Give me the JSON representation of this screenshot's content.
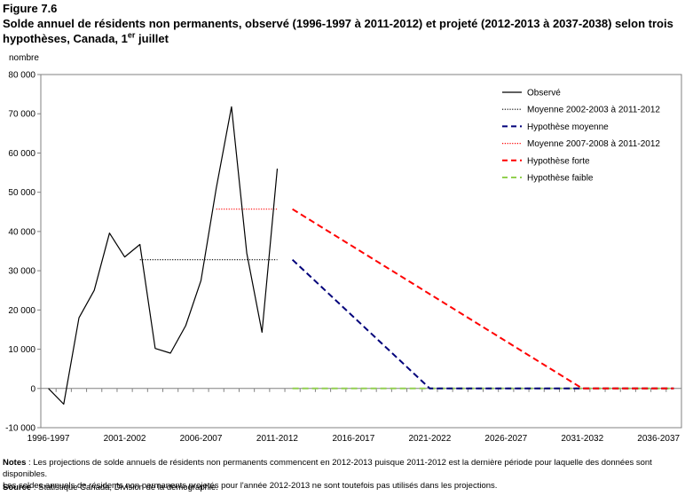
{
  "figure_label": "Figure 7.6",
  "title_main": "Solde annuel de résidents non permanents, observé (1996-1997 à 2011-2012) et projeté (2012-2013 à 2037-2038) selon trois hypothèses, Canada, 1",
  "title_sup": "er",
  "title_end": " juillet",
  "notes_label": "Notes",
  "notes_text": " : Les projections de solde annuels de résidents non permanents commencent en 2012-2013 puisque 2011-2012 est la dernière période pour laquelle des données sont disponibles.",
  "notes_text2": "Les soldes annuels de résidents non permanents projetés pour l'année 2012-2013 ne sont toutefois pas utilisés dans les projections.",
  "source_label": "Source",
  "source_text": " : Statistique Canada, Division de la démographie.",
  "chart_data": {
    "type": "line",
    "ylabel": "nombre",
    "ylim": [
      -10000,
      80000
    ],
    "ytick_step": 10000,
    "ytick_labels": [
      "-10 000",
      "0",
      "10 000",
      "20 000",
      "30 000",
      "40 000",
      "50 000",
      "60 000",
      "70 000",
      "80 000"
    ],
    "categories": [
      "1996-1997",
      "1997-1998",
      "1998-1999",
      "1999-2000",
      "2000-2001",
      "2001-2002",
      "2002-2003",
      "2003-2004",
      "2004-2005",
      "2005-2006",
      "2006-2007",
      "2007-2008",
      "2008-2009",
      "2009-2010",
      "2010-2011",
      "2011-2012",
      "2012-2013",
      "2013-2014",
      "2014-2015",
      "2015-2016",
      "2016-2017",
      "2017-2018",
      "2018-2019",
      "2019-2020",
      "2020-2021",
      "2021-2022",
      "2022-2023",
      "2023-2024",
      "2024-2025",
      "2025-2026",
      "2026-2027",
      "2027-2028",
      "2028-2029",
      "2029-2030",
      "2030-2031",
      "2031-2032",
      "2032-2033",
      "2033-2034",
      "2034-2035",
      "2035-2036",
      "2036-2037",
      "2037-2038"
    ],
    "xtick_labels": [
      "1996-1997",
      "2001-2002",
      "2006-2007",
      "2011-2012",
      "2016-2017",
      "2021-2022",
      "2026-2027",
      "2031-2032",
      "2036-2037"
    ],
    "legend_position": "top-right",
    "series": [
      {
        "name": "Observé",
        "color": "#000000",
        "dash": "solid",
        "x": [
          "1996-1997",
          "1997-1998",
          "1998-1999",
          "1999-2000",
          "2000-2001",
          "2001-2002",
          "2002-2003",
          "2003-2004",
          "2004-2005",
          "2005-2006",
          "2006-2007",
          "2007-2008",
          "2008-2009",
          "2009-2010",
          "2010-2011",
          "2011-2012"
        ],
        "values": [
          0,
          -4000,
          18000,
          25000,
          39600,
          33500,
          36700,
          10200,
          9000,
          16000,
          27500,
          51000,
          71800,
          34500,
          14300,
          56000
        ]
      },
      {
        "name": "Moyenne 2002-2003 à 2011-2012",
        "color": "#000000",
        "dash": "dotted",
        "x": [
          "2002-2003",
          "2011-2012"
        ],
        "values": [
          32800,
          32800
        ]
      },
      {
        "name": "Hypothèse moyenne",
        "color": "#00007a",
        "dash": "dashed",
        "x": [
          "2012-2013",
          "2021-2022",
          "2037-2038"
        ],
        "values": [
          32800,
          0,
          0
        ]
      },
      {
        "name": "Moyenne 2007-2008 à 2011-2012",
        "color": "#ff0000",
        "dash": "dotted",
        "x": [
          "2007-2008",
          "2011-2012"
        ],
        "values": [
          45700,
          45700
        ]
      },
      {
        "name": "Hypothèse forte",
        "color": "#ff0000",
        "dash": "dashed",
        "x": [
          "2012-2013",
          "2031-2032",
          "2037-2038"
        ],
        "values": [
          45700,
          0,
          0
        ]
      },
      {
        "name": "Hypothèse faible",
        "color": "#92d050",
        "dash": "dashed",
        "x": [
          "2012-2013",
          "2037-2038"
        ],
        "values": [
          0,
          0
        ]
      }
    ]
  }
}
